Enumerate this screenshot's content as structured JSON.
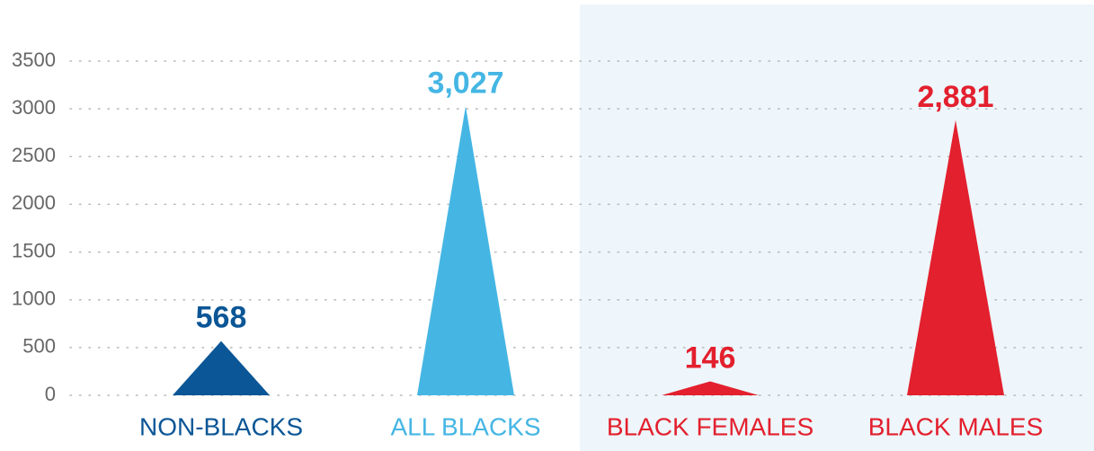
{
  "chart_data": {
    "type": "triangle-bar",
    "categories": [
      "NON-BLACKS",
      "ALL BLACKS",
      "BLACK FEMALES",
      "BLACK MALES"
    ],
    "values": [
      568,
      3027,
      146,
      2881
    ],
    "value_labels": [
      "568",
      "3,027",
      "146",
      "2,881"
    ],
    "colors": [
      "#0b5696",
      "#45b6e4",
      "#e3202e",
      "#e3202e"
    ],
    "ylim": [
      0,
      3500
    ],
    "yticks": [
      0,
      500,
      1000,
      1500,
      2000,
      2500,
      3000,
      3500
    ],
    "grid": true
  }
}
